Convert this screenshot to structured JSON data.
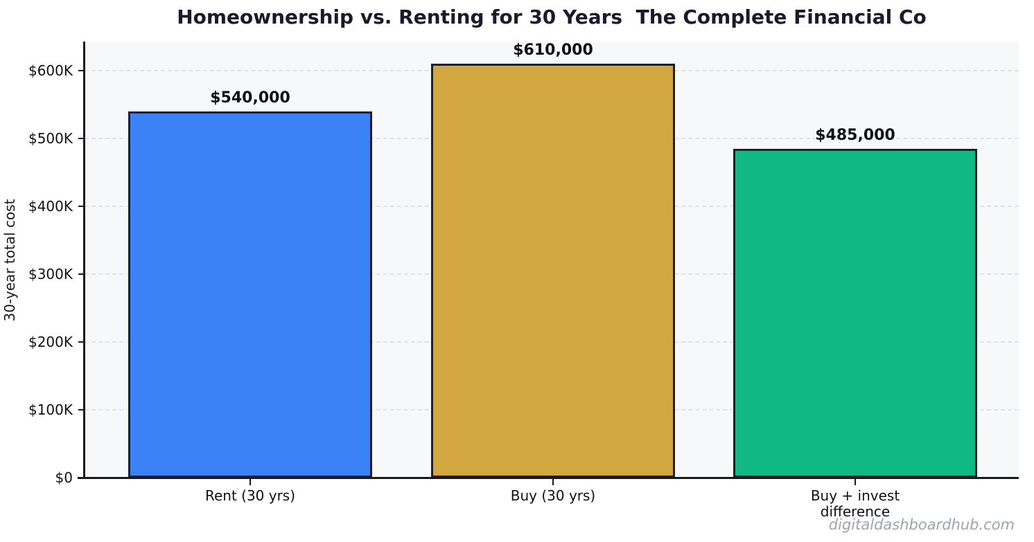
{
  "title": "Homeownership vs. Renting for 30 Years  The Complete Financial Co",
  "watermark": "digitaldashboardhub.com",
  "chart_data": {
    "type": "bar",
    "title": "Homeownership vs. Renting for 30 Years  The Complete Financial Co",
    "xlabel": "",
    "ylabel": "30-year total cost",
    "categories": [
      "Rent (30 yrs)",
      "Buy (30 yrs)",
      "Buy + invest\ndifference"
    ],
    "values": [
      540000,
      610000,
      485000
    ],
    "bar_value_labels": [
      "$540,000",
      "$610,000",
      "$485,000"
    ],
    "bar_colors": [
      "#3b82f6",
      "#d2a73f",
      "#10b981"
    ],
    "bar_edge_color": "#1f1f2e",
    "ylim": [
      0,
      641000
    ],
    "yticks": [
      {
        "value": 0,
        "label": "$0"
      },
      {
        "value": 100000,
        "label": "$100K"
      },
      {
        "value": 200000,
        "label": "$200K"
      },
      {
        "value": 300000,
        "label": "$300K"
      },
      {
        "value": 400000,
        "label": "$400K"
      },
      {
        "value": 500000,
        "label": "$500K"
      },
      {
        "value": 600000,
        "label": "$600K"
      }
    ],
    "grid": "horizontal-dashed",
    "grid_color": "#e2e3e8",
    "plot_background": "#f7f8fa",
    "legend": "none"
  }
}
